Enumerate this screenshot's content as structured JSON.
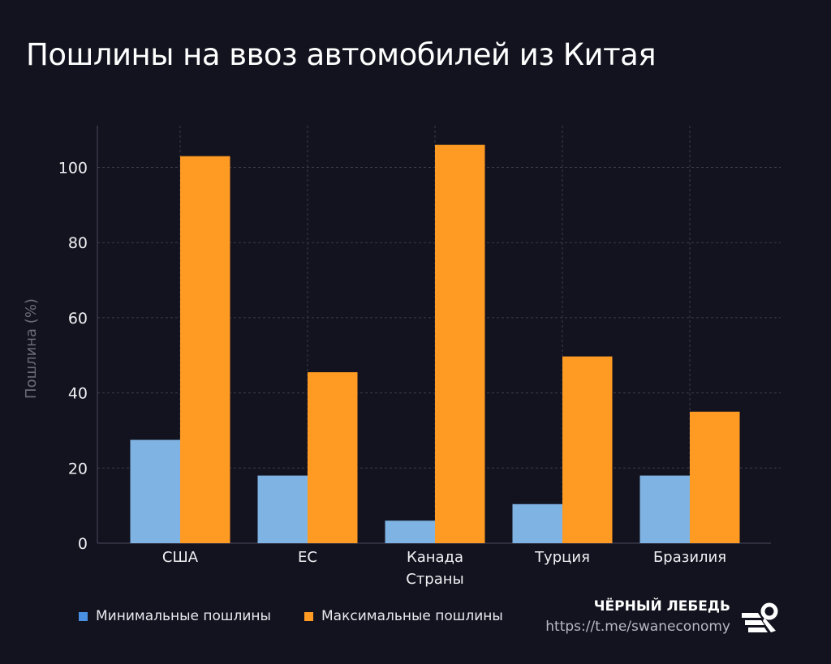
{
  "title": "Пошлины на ввоз автомобилей из Китая",
  "chart_data": {
    "type": "bar",
    "title": "Пошлины на ввоз автомобилей из Китая",
    "xlabel": "Страны",
    "ylabel": "Пошлина (%)",
    "categories": [
      "США",
      "ЕС",
      "Канада",
      "Турция",
      "Бразилия"
    ],
    "series": [
      {
        "name": "Минимальные пошлины",
        "values": [
          27.5,
          18,
          6,
          10.4,
          18
        ],
        "color": "#7fb3e3"
      },
      {
        "name": "Максимальные пошлины",
        "values": [
          103,
          45.5,
          106,
          49.7,
          35
        ],
        "color": "#ff9a23"
      }
    ],
    "ylim": [
      0,
      112
    ],
    "yticks": [
      0,
      20,
      40,
      60,
      80,
      100
    ],
    "grid": true,
    "legend_placement": "bottom-left"
  },
  "legend": {
    "min_color": "#4a90e2",
    "max_color": "#ff9a23"
  },
  "brand": {
    "name": "ЧЁРНЫЙ ЛЕБЕДЬ",
    "url": "https://t.me/swaneconomy"
  }
}
